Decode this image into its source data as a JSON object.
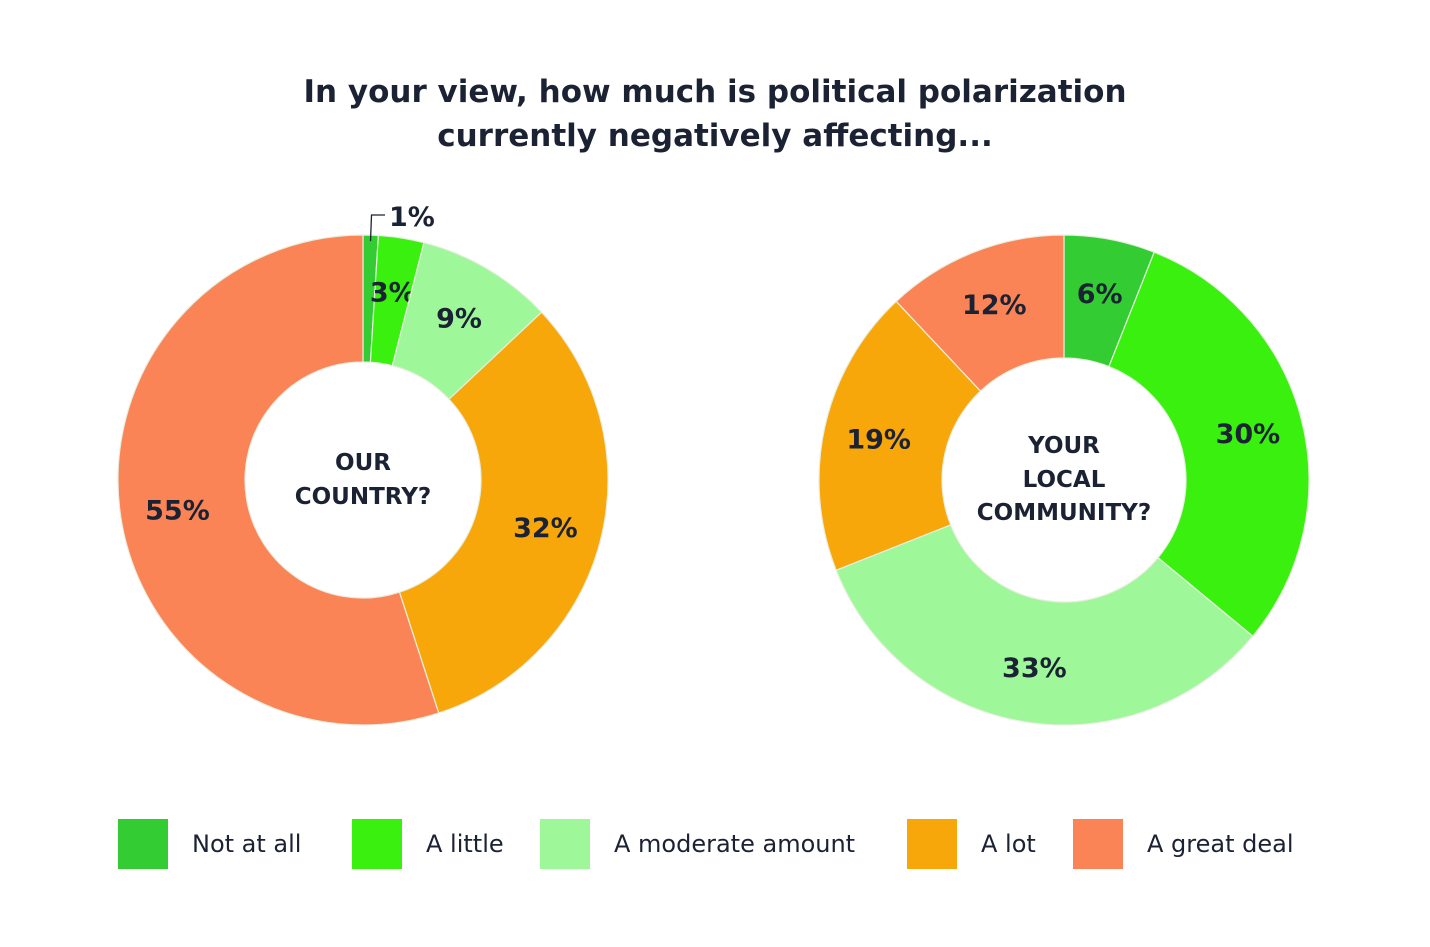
{
  "title_line1": "In your view, how much is political polarization",
  "title_line2": "currently negatively affecting...",
  "chart_data": [
    {
      "type": "pie",
      "donut": true,
      "center_label": [
        "OUR",
        "COUNTRY?"
      ],
      "categories": [
        "Not at all",
        "A little",
        "A moderate amount",
        "A lot",
        "A great deal"
      ],
      "values": [
        1,
        3,
        9,
        32,
        55
      ],
      "labels": [
        "1%",
        "3%",
        "9%",
        "32%",
        "55%"
      ]
    },
    {
      "type": "pie",
      "donut": true,
      "center_label": [
        "YOUR",
        "LOCAL",
        "COMMUNITY?"
      ],
      "categories": [
        "Not at all",
        "A little",
        "A moderate amount",
        "A lot",
        "A great deal"
      ],
      "values": [
        6,
        30,
        33,
        19,
        12
      ],
      "labels": [
        "6%",
        "30%",
        "33%",
        "19%",
        "12%"
      ]
    }
  ],
  "legend": [
    {
      "label": "Not at all",
      "color": "#33cc33"
    },
    {
      "label": "A little",
      "color": "#39f00f"
    },
    {
      "label": "A moderate amount",
      "color": "#9ef89a"
    },
    {
      "label": "A lot",
      "color": "#f7a70a"
    },
    {
      "label": "A great deal",
      "color": "#fa8456"
    }
  ]
}
